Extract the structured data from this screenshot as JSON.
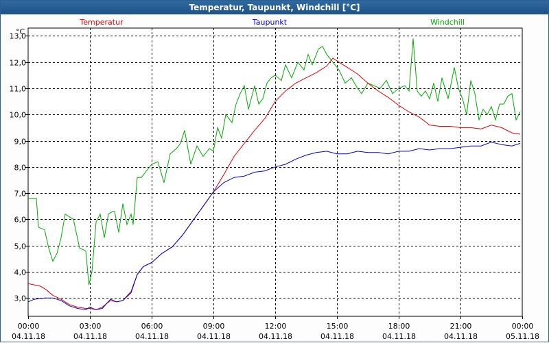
{
  "window": {
    "title": "Temperatur, Taupunkt, Windchill [°C]"
  },
  "chart_data": {
    "type": "line",
    "title": "Temperatur, Taupunkt, Windchill [°C]",
    "ylabel": "°C",
    "xlabel": "",
    "xlim": [
      0,
      24
    ],
    "ylim": [
      2.3,
      13.3
    ],
    "grid": true,
    "grid_style": "dashed",
    "legend_placement": "top",
    "y_ticks": [
      3.0,
      4.0,
      5.0,
      6.0,
      7.0,
      8.0,
      9.0,
      10.0,
      11.0,
      12.0,
      13.0
    ],
    "y_tick_labels": [
      "3,0",
      "4,0",
      "5,0",
      "6,0",
      "7,0",
      "8,0",
      "9,0",
      "10,0",
      "11,0",
      "12,0",
      "13,0"
    ],
    "x_ticks": [
      {
        "hour": 0,
        "time": "00:00",
        "date": "04.11.18"
      },
      {
        "hour": 3,
        "time": "03:00",
        "date": "04.11.18"
      },
      {
        "hour": 6,
        "time": "06:00",
        "date": "04.11.18"
      },
      {
        "hour": 9,
        "time": "09:00",
        "date": "04.11.18"
      },
      {
        "hour": 12,
        "time": "12:00",
        "date": "04.11.18"
      },
      {
        "hour": 15,
        "time": "15:00",
        "date": "04.11.18"
      },
      {
        "hour": 18,
        "time": "18:00",
        "date": "04.11.18"
      },
      {
        "hour": 21,
        "time": "21:00",
        "date": "04.11.18"
      },
      {
        "hour": 24,
        "time": "00:00",
        "date": "05.11.18"
      }
    ],
    "series": [
      {
        "name": "Temperatur",
        "color": "#dd0000",
        "x": [
          0,
          0.6,
          0.9,
          1.2,
          1.6,
          2.0,
          2.4,
          2.8,
          3.0,
          3.3,
          3.6,
          4.0,
          4.3,
          4.6,
          5.0,
          5.3,
          5.6,
          6.0,
          6.5,
          7.0,
          7.5,
          8.0,
          8.5,
          9.0,
          9.5,
          10.0,
          10.5,
          11.0,
          11.5,
          12.0,
          12.5,
          13.0,
          13.5,
          14.0,
          14.5,
          14.8,
          15.0,
          15.5,
          16.0,
          16.5,
          17.0,
          17.5,
          18.0,
          18.5,
          19.0,
          19.5,
          20.0,
          20.5,
          21.0,
          21.5,
          22.0,
          22.5,
          23.0,
          23.5,
          23.9
        ],
        "values": [
          3.55,
          3.45,
          3.3,
          3.1,
          2.95,
          2.75,
          2.65,
          2.6,
          2.6,
          2.55,
          2.65,
          2.9,
          2.85,
          2.9,
          3.25,
          3.9,
          4.2,
          4.35,
          4.7,
          4.95,
          5.4,
          5.95,
          6.5,
          7.05,
          7.7,
          8.4,
          8.9,
          9.4,
          9.85,
          10.5,
          10.9,
          11.2,
          11.4,
          11.6,
          11.85,
          12.15,
          12.05,
          11.8,
          11.55,
          11.2,
          10.9,
          10.65,
          10.35,
          10.1,
          9.9,
          9.6,
          9.55,
          9.55,
          9.5,
          9.5,
          9.45,
          9.6,
          9.5,
          9.3,
          9.25
        ]
      },
      {
        "name": "Taupunkt",
        "color": "#0000cc",
        "x": [
          0,
          0.3,
          0.8,
          1.2,
          1.6,
          2.0,
          2.4,
          2.8,
          3.0,
          3.3,
          3.6,
          4.0,
          4.3,
          4.6,
          5.0,
          5.3,
          5.6,
          6.0,
          6.5,
          7.0,
          7.5,
          8.0,
          8.5,
          9.0,
          9.5,
          10.0,
          10.5,
          11.0,
          11.5,
          12.0,
          12.5,
          13.0,
          13.5,
          14.0,
          14.5,
          15.0,
          15.5,
          16.0,
          16.5,
          17.0,
          17.5,
          18.0,
          18.5,
          19.0,
          19.5,
          20.0,
          20.5,
          21.0,
          21.5,
          22.0,
          22.5,
          23.0,
          23.5,
          23.9
        ],
        "values": [
          2.85,
          2.95,
          3.0,
          3.0,
          2.9,
          2.7,
          2.6,
          2.55,
          2.65,
          2.55,
          2.6,
          2.95,
          2.85,
          2.9,
          3.2,
          3.9,
          4.2,
          4.35,
          4.7,
          4.95,
          5.4,
          5.95,
          6.5,
          7.05,
          7.4,
          7.6,
          7.65,
          7.8,
          7.85,
          8.0,
          8.1,
          8.3,
          8.45,
          8.55,
          8.6,
          8.5,
          8.5,
          8.6,
          8.55,
          8.55,
          8.5,
          8.6,
          8.6,
          8.7,
          8.65,
          8.7,
          8.7,
          8.75,
          8.8,
          8.8,
          8.95,
          8.85,
          8.8,
          8.9
        ]
      },
      {
        "name": "Windchill",
        "color": "#00aa00",
        "x": [
          0,
          0.4,
          0.5,
          0.8,
          1.0,
          1.2,
          1.4,
          1.6,
          1.8,
          2.0,
          2.2,
          2.5,
          2.8,
          2.95,
          3.1,
          3.3,
          3.5,
          3.7,
          3.9,
          4.1,
          4.2,
          4.4,
          4.6,
          4.8,
          5.0,
          5.1,
          5.3,
          5.5,
          5.7,
          5.8,
          6.0,
          6.3,
          6.6,
          6.9,
          7.2,
          7.4,
          7.6,
          7.9,
          8.2,
          8.5,
          8.8,
          9.0,
          9.2,
          9.4,
          9.6,
          9.9,
          10.1,
          10.3,
          10.5,
          10.7,
          11.0,
          11.2,
          11.4,
          11.6,
          11.8,
          12.0,
          12.3,
          12.5,
          12.8,
          13.1,
          13.4,
          13.6,
          13.8,
          14.1,
          14.3,
          14.5,
          14.7,
          14.9,
          15.1,
          15.4,
          15.7,
          16.0,
          16.2,
          16.5,
          16.8,
          17.1,
          17.4,
          17.7,
          18.0,
          18.3,
          18.5,
          18.7,
          18.9,
          19.1,
          19.3,
          19.5,
          19.7,
          19.9,
          20.1,
          20.4,
          20.7,
          20.9,
          21.1,
          21.3,
          21.5,
          21.7,
          21.9,
          22.1,
          22.3,
          22.5,
          22.7,
          22.9,
          23.1,
          23.3,
          23.5,
          23.7,
          23.9
        ],
        "values": [
          6.8,
          6.8,
          5.7,
          5.6,
          4.9,
          4.4,
          4.7,
          5.3,
          6.2,
          6.1,
          6.0,
          4.9,
          4.8,
          3.5,
          4.0,
          5.9,
          6.2,
          5.3,
          6.2,
          6.3,
          6.3,
          5.5,
          6.6,
          5.8,
          6.2,
          5.8,
          7.6,
          7.6,
          7.8,
          7.9,
          8.1,
          8.2,
          7.4,
          8.5,
          8.7,
          8.9,
          9.4,
          8.1,
          8.8,
          8.4,
          8.7,
          8.6,
          9.5,
          9.1,
          10.0,
          9.7,
          10.4,
          10.8,
          11.1,
          10.2,
          11.1,
          10.4,
          10.6,
          11.2,
          11.4,
          11.5,
          11.3,
          11.9,
          11.4,
          12.0,
          11.7,
          12.3,
          11.9,
          12.5,
          12.6,
          12.3,
          12.1,
          11.9,
          11.7,
          11.2,
          11.4,
          11.0,
          10.8,
          11.2,
          11.1,
          11.0,
          11.3,
          10.8,
          11.0,
          11.1,
          10.9,
          12.9,
          10.9,
          10.7,
          10.9,
          10.6,
          11.2,
          10.5,
          11.4,
          10.6,
          11.8,
          11.0,
          10.6,
          10.0,
          11.3,
          10.8,
          9.8,
          10.2,
          10.0,
          10.3,
          9.8,
          10.4,
          10.4,
          10.7,
          10.8,
          9.8,
          10.1
        ]
      }
    ]
  }
}
